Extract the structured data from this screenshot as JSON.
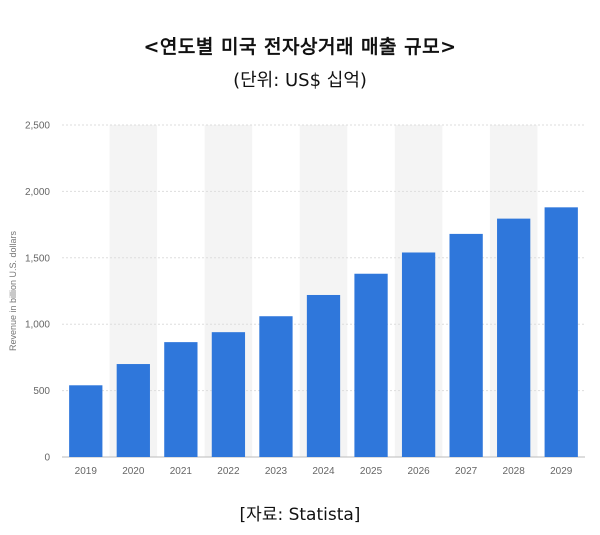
{
  "title": "<연도별 미국 전자상거래 매출 규모>",
  "subtitle": "(단위: US$ 십억)",
  "source": "[자료: Statista]",
  "chart_data": {
    "type": "bar",
    "categories": [
      "2019",
      "2020",
      "2021",
      "2022",
      "2023",
      "2024",
      "2025",
      "2026",
      "2027",
      "2028",
      "2029"
    ],
    "series": [
      {
        "values": [
          540,
          700,
          865,
          940,
          1060,
          1220,
          1380,
          1540,
          1680,
          1795,
          1880
        ]
      }
    ],
    "ylabel": "Revenue in billion U.S. dollars",
    "ylim": [
      0,
      2500
    ],
    "yticks": [
      0,
      500,
      1000,
      1500,
      2000,
      2500
    ],
    "ytick_labels": [
      "0",
      "500",
      "1,000",
      "1,500",
      "2,000",
      "2,500"
    ],
    "grid": true,
    "colors": {
      "bar": "#2f77db",
      "band": "#f4f4f4",
      "grid": "#dddddd",
      "baseline": "#bbbbbb"
    }
  }
}
